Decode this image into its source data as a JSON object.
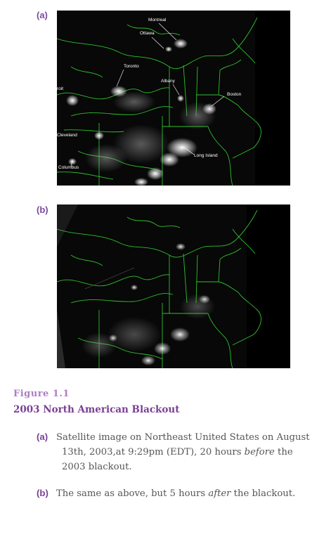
{
  "panels": {
    "a_label": "(a)",
    "b_label": "(b)"
  },
  "city_labels": {
    "montreal": "Montreal",
    "ottawa": "Ottawa",
    "toronto": "Toronto",
    "albany": "Albany",
    "detroit": "roit",
    "boston": "Boston",
    "cleveland": "Cleveland",
    "long_island": "Long Island",
    "columbus": "Columbus"
  },
  "figure": {
    "number": "Figure 1.1",
    "title": "2003 North American Blackout"
  },
  "captions": {
    "a": {
      "tag": "(a)",
      "text_1": "Satellite image on Northeast United States on August 13th, 2003,at 9:29pm (EDT), 20 hours ",
      "emph": "before",
      "text_2": " the 2003 blackout."
    },
    "b": {
      "tag": "(b)",
      "text_1": "The same as above, but 5 hours ",
      "emph": "after",
      "text_2": " the blackout."
    }
  },
  "colors": {
    "accent": "#7a3e96",
    "figure_number": "#b07cc6",
    "border_lines": "#2fbf2f",
    "background_night": "#070807",
    "caption_text": "#555555"
  }
}
